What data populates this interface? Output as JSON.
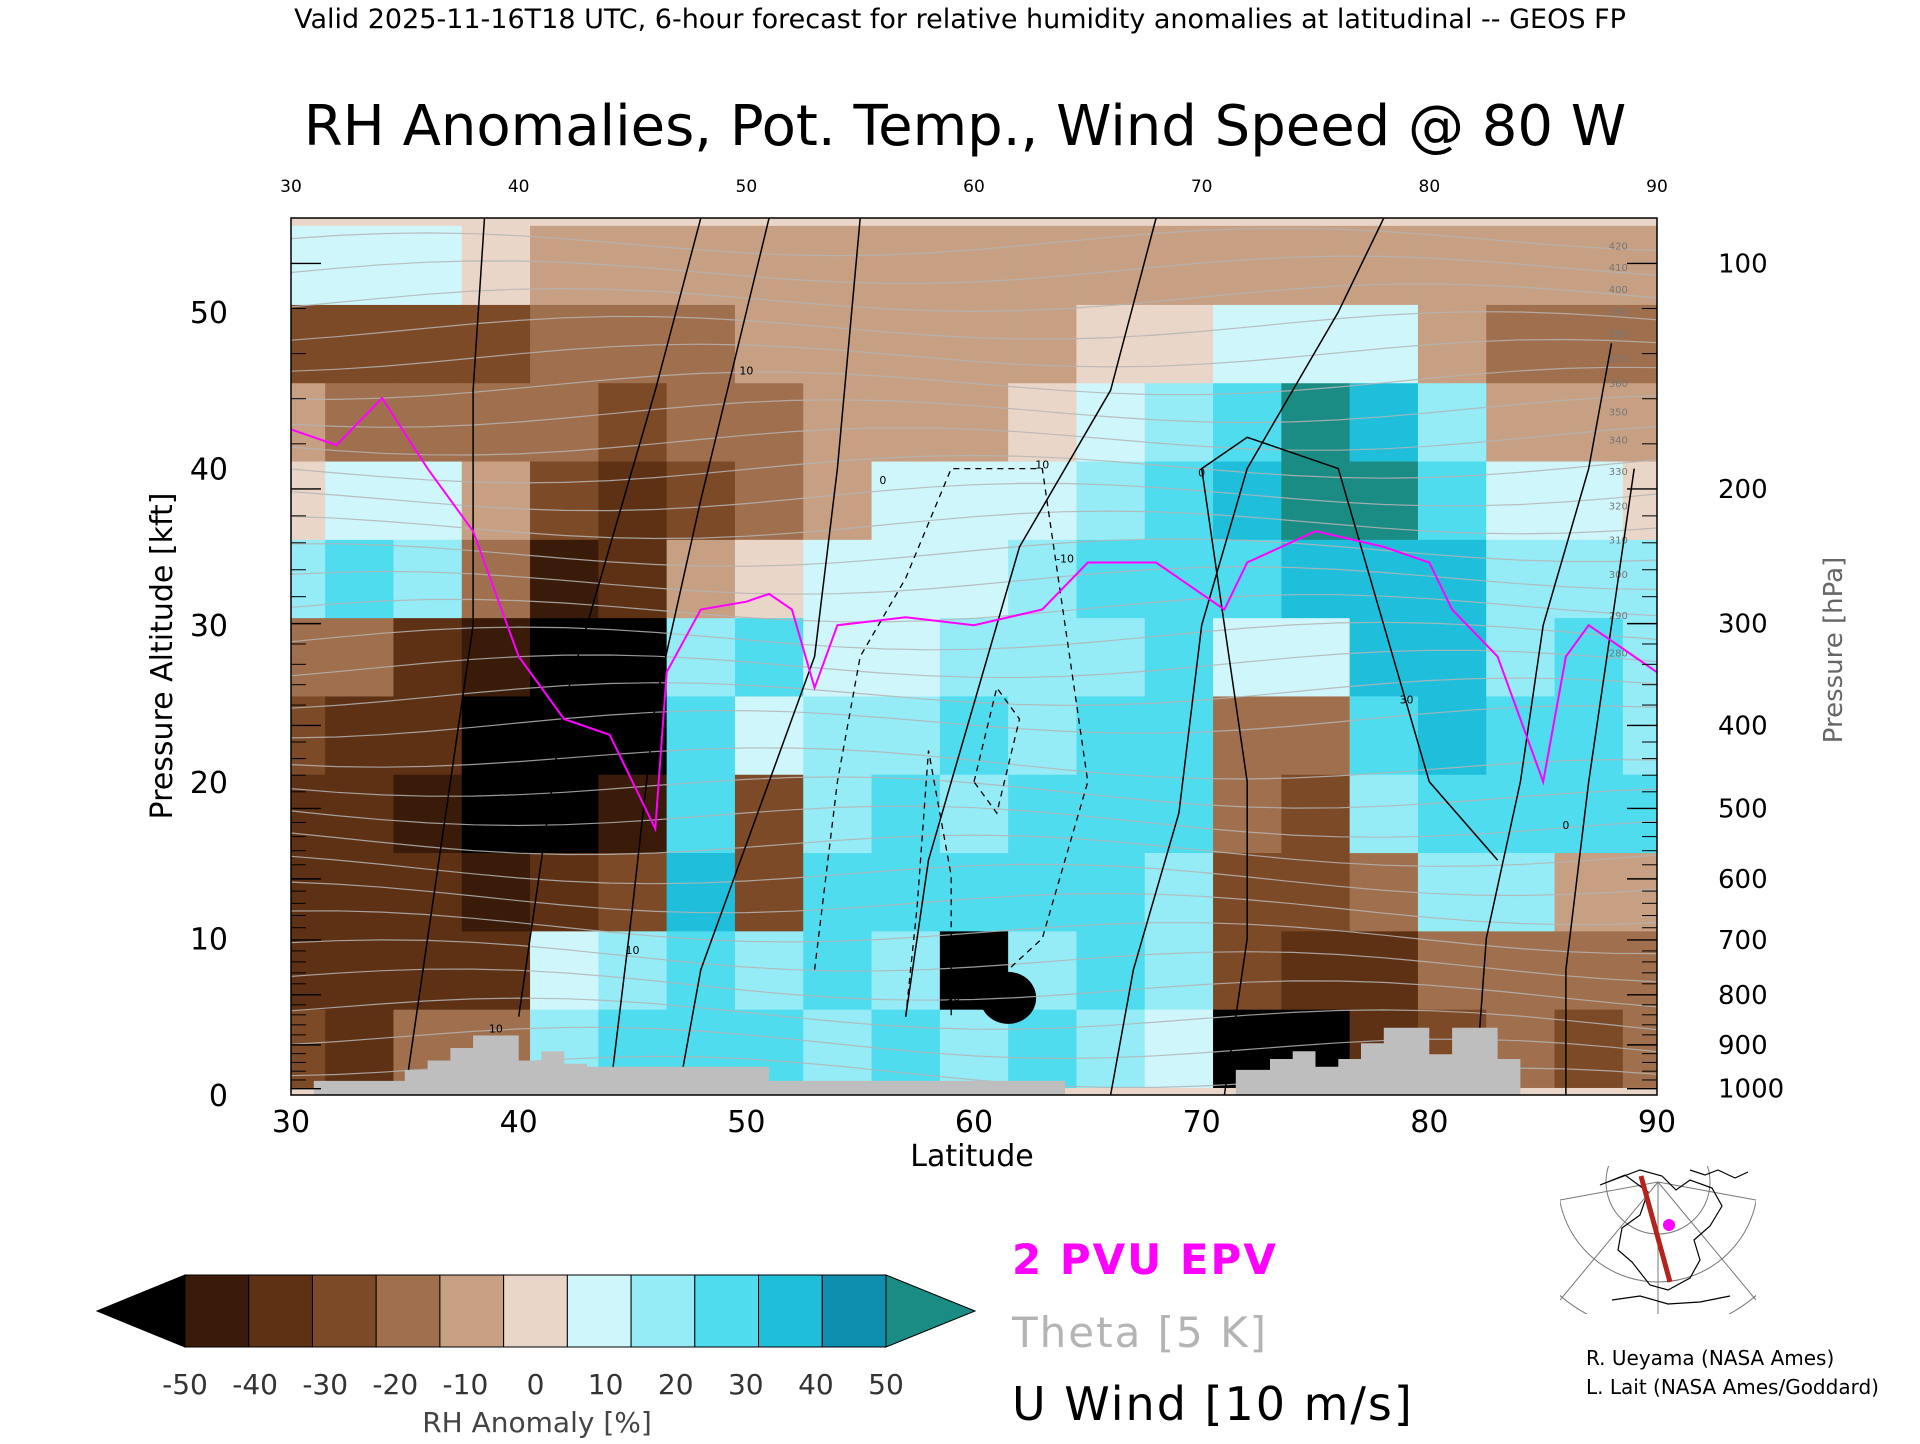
{
  "header": {
    "valid_line": "Valid 2025-11-16T18 UTC, 6-hour forecast for relative humidity anomalies at latitudinal -- GEOS FP",
    "title": "RH Anomalies, Pot. Temp., Wind Speed @ 80 W"
  },
  "chart_data": {
    "type": "heatmap",
    "title": "RH Anomalies, Pot. Temp., Wind Speed @ 80 W",
    "xlabel": "Latitude",
    "ylabel": "Pressure Altitude [kft]",
    "y2label": "Pressure [hPa]",
    "xlim": [
      30,
      90
    ],
    "ylim": [
      0,
      56
    ],
    "x_ticks": [
      "30",
      "40",
      "50",
      "60",
      "70",
      "80",
      "90"
    ],
    "y_ticks": [
      "0",
      "10",
      "20",
      "30",
      "40",
      "50"
    ],
    "pressure_ticks": [
      {
        "label": "100",
        "kft": 53.1
      },
      {
        "label": "200",
        "kft": 38.7
      },
      {
        "label": "300",
        "kft": 30.1
      },
      {
        "label": "400",
        "kft": 23.6
      },
      {
        "label": "500",
        "kft": 18.3
      },
      {
        "label": "600",
        "kft": 13.8
      },
      {
        "label": "700",
        "kft": 9.9
      },
      {
        "label": "800",
        "kft": 6.4
      },
      {
        "label": "900",
        "kft": 3.2
      },
      {
        "label": "1000",
        "kft": 0.4
      }
    ],
    "colorbar": {
      "label": "RH Anomaly [%]",
      "ticks": [
        "-50",
        "-40",
        "-30",
        "-20",
        "-10",
        "0",
        "10",
        "20",
        "30",
        "40",
        "50"
      ],
      "colors": [
        "#3a1a08",
        "#5e3115",
        "#7d4a28",
        "#a0704e",
        "#c7a084",
        "#ead6c8",
        "#cff6fa",
        "#96ecf6",
        "#4fdcee",
        "#1fbfdc",
        "#0f8faf"
      ],
      "under_color": "#000000",
      "over_color": "#1b8c84"
    },
    "legend": [
      {
        "label": "2 PVU EPV",
        "color": "#ff00ff"
      },
      {
        "label": "Theta [5 K]",
        "color": "#b4b4b4"
      },
      {
        "label": "U Wind [10 m/s]",
        "color": "#000000"
      }
    ],
    "anomaly_columns": [
      {
        "lat": 30,
        "values": [
          -30,
          -35,
          -35,
          -40,
          -30,
          -15,
          20,
          5,
          -10,
          -25,
          10
        ]
      },
      {
        "lat": 33,
        "values": [
          -35,
          -40,
          -35,
          -40,
          -35,
          -20,
          30,
          10,
          -15,
          -25,
          15
        ]
      },
      {
        "lat": 36,
        "values": [
          -20,
          -40,
          -40,
          -45,
          -40,
          -35,
          25,
          10,
          -15,
          -25,
          10
        ]
      },
      {
        "lat": 39,
        "values": [
          -20,
          -35,
          -45,
          -50,
          -55,
          -45,
          -20,
          -10,
          -20,
          -25,
          5
        ]
      },
      {
        "lat": 42,
        "values": [
          20,
          10,
          -35,
          -50,
          -55,
          -55,
          -45,
          -25,
          -20,
          -20,
          -10
        ]
      },
      {
        "lat": 45,
        "values": [
          30,
          25,
          -30,
          -45,
          -50,
          -50,
          -40,
          -35,
          -25,
          -20,
          -10
        ]
      },
      {
        "lat": 48,
        "values": [
          35,
          30,
          40,
          30,
          30,
          25,
          -10,
          -25,
          -20,
          -15,
          -10
        ]
      },
      {
        "lat": 51,
        "values": [
          30,
          20,
          -30,
          -25,
          10,
          30,
          5,
          -15,
          -15,
          -10,
          -5
        ]
      },
      {
        "lat": 54,
        "values": [
          25,
          30,
          30,
          20,
          20,
          15,
          10,
          -10,
          -10,
          -10,
          -5
        ]
      },
      {
        "lat": 57,
        "values": [
          30,
          25,
          35,
          30,
          25,
          15,
          15,
          10,
          -10,
          -10,
          -5
        ]
      },
      {
        "lat": 60,
        "values": [
          20,
          -50,
          30,
          25,
          30,
          20,
          15,
          10,
          -5,
          -10,
          -5
        ]
      },
      {
        "lat": 63,
        "values": [
          30,
          25,
          35,
          30,
          25,
          20,
          20,
          15,
          5,
          -5,
          -5
        ]
      },
      {
        "lat": 66,
        "values": [
          25,
          30,
          35,
          35,
          30,
          25,
          30,
          25,
          15,
          5,
          -5
        ]
      },
      {
        "lat": 69,
        "values": [
          10,
          20,
          25,
          30,
          35,
          30,
          35,
          30,
          20,
          5,
          -5
        ]
      },
      {
        "lat": 72,
        "values": [
          -50,
          -30,
          -25,
          -20,
          -15,
          10,
          35,
          40,
          35,
          10,
          -5
        ]
      },
      {
        "lat": 75,
        "values": [
          -55,
          -35,
          -30,
          -25,
          -15,
          10,
          40,
          50,
          50,
          15,
          -5
        ]
      },
      {
        "lat": 78,
        "values": [
          -40,
          -35,
          -20,
          25,
          35,
          40,
          45,
          50,
          40,
          10,
          -5
        ]
      },
      {
        "lat": 81,
        "values": [
          -25,
          -15,
          25,
          35,
          40,
          40,
          40,
          35,
          25,
          -5,
          -10
        ]
      },
      {
        "lat": 84,
        "values": [
          -20,
          -15,
          20,
          30,
          30,
          25,
          20,
          10,
          -10,
          -15,
          -10
        ]
      },
      {
        "lat": 87,
        "values": [
          -30,
          -20,
          -10,
          35,
          30,
          30,
          25,
          10,
          -10,
          -15,
          -10
        ]
      },
      {
        "lat": 90,
        "values": [
          -20,
          -15,
          -10,
          30,
          25,
          20,
          20,
          5,
          -10,
          -15,
          -10
        ]
      }
    ],
    "anomaly_levels_kft": [
      3,
      8,
      13,
      18,
      23,
      28,
      33,
      38,
      43,
      48,
      53
    ],
    "black_anomaly_patches": [
      {
        "lat": 42,
        "kft": 26.5,
        "note": "dry core"
      },
      {
        "lat": 61.5,
        "kft": 6.2,
        "note": "dry core"
      },
      {
        "lat": 74.5,
        "kft": 3.3,
        "note": "dry core"
      }
    ],
    "theta_labels": [
      "420",
      "410",
      "400",
      "390",
      "380",
      "370",
      "360",
      "350",
      "340",
      "330",
      "320",
      "310",
      "300",
      "290",
      "280"
    ],
    "epv_2pvu_line": [
      [
        30,
        42.5
      ],
      [
        32,
        41.5
      ],
      [
        34,
        44.5
      ],
      [
        36,
        40
      ],
      [
        38,
        36
      ],
      [
        39,
        32
      ],
      [
        40,
        28
      ],
      [
        42,
        24
      ],
      [
        44,
        23
      ],
      [
        45,
        20
      ],
      [
        46,
        17
      ],
      [
        46.5,
        27
      ],
      [
        48,
        31
      ],
      [
        50,
        31.5
      ],
      [
        51,
        32
      ],
      [
        52,
        31
      ],
      [
        53,
        26
      ],
      [
        54,
        30
      ],
      [
        57,
        30.5
      ],
      [
        60,
        30
      ],
      [
        63,
        31
      ],
      [
        65,
        34
      ],
      [
        68,
        34
      ],
      [
        70,
        32
      ],
      [
        71,
        31
      ],
      [
        72,
        34
      ],
      [
        75,
        36
      ],
      [
        78,
        35
      ],
      [
        80,
        34
      ],
      [
        81,
        31
      ],
      [
        83,
        28
      ],
      [
        84,
        24
      ],
      [
        85,
        20
      ],
      [
        86,
        28
      ],
      [
        87,
        30
      ],
      [
        88,
        29
      ],
      [
        89,
        28
      ],
      [
        90,
        27
      ]
    ],
    "u_wind_contours_label": "U Wind [10 m/s]",
    "u_wind_contour_values": [
      "0",
      "10",
      "20",
      "30",
      "-10"
    ],
    "terrain_kft": [
      [
        30,
        0
      ],
      [
        31,
        0.9
      ],
      [
        33,
        0.9
      ],
      [
        35,
        1.6
      ],
      [
        36,
        2.2
      ],
      [
        37,
        3.0
      ],
      [
        38,
        3.8
      ],
      [
        39,
        3.8
      ],
      [
        40,
        2.2
      ],
      [
        41,
        2.8
      ],
      [
        42,
        2.0
      ],
      [
        43,
        1.8
      ],
      [
        49,
        1.8
      ],
      [
        50,
        1.8
      ],
      [
        51,
        0.9
      ],
      [
        52,
        0.9
      ],
      [
        58,
        0.9
      ],
      [
        59,
        0.9
      ],
      [
        63,
        0.9
      ],
      [
        64,
        0.0
      ],
      [
        71,
        0.0
      ],
      [
        71.5,
        1.6
      ],
      [
        73,
        2.3
      ],
      [
        74,
        2.8
      ],
      [
        75,
        1.8
      ],
      [
        76,
        2.3
      ],
      [
        77,
        3.3
      ],
      [
        78,
        4.3
      ],
      [
        79,
        4.3
      ],
      [
        80,
        2.6
      ],
      [
        81,
        4.3
      ],
      [
        82,
        4.3
      ],
      [
        83,
        2.3
      ],
      [
        84,
        0
      ]
    ],
    "grid": false
  },
  "credits": {
    "line1": "R. Ueyama (NASA Ames)",
    "line2": "L. Lait (NASA Ames/Goddard)"
  },
  "colors": {
    "epv": "#ff00ff",
    "theta": "#b4b4b4",
    "wind": "#000000",
    "terrain": "#bebebe",
    "transect": "#b4241e"
  }
}
